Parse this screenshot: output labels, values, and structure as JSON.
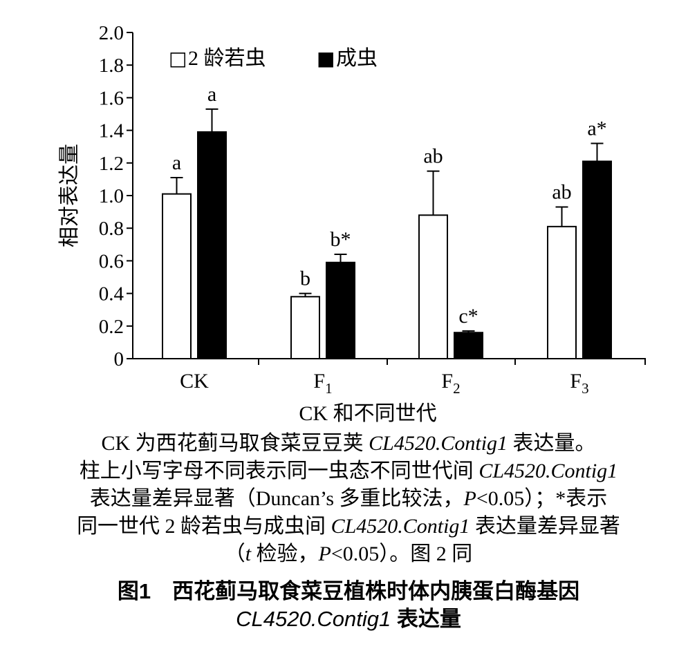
{
  "chart_data": {
    "type": "bar",
    "categories": [
      "CK",
      "F1",
      "F2",
      "F3"
    ],
    "category_labels": [
      {
        "main": "CK",
        "sub": ""
      },
      {
        "main": "F",
        "sub": "1"
      },
      {
        "main": "F",
        "sub": "2"
      },
      {
        "main": "F",
        "sub": "3"
      }
    ],
    "series": [
      {
        "name": "2 龄若虫",
        "fill": "#ffffff",
        "values": [
          1.01,
          0.38,
          0.88,
          0.81
        ],
        "errors": [
          0.1,
          0.02,
          0.27,
          0.12
        ],
        "labels": [
          "a",
          "b",
          "ab",
          "ab"
        ]
      },
      {
        "name": "成虫",
        "fill": "#000000",
        "values": [
          1.39,
          0.59,
          0.16,
          1.21
        ],
        "errors": [
          0.14,
          0.05,
          0.01,
          0.11
        ],
        "labels": [
          "a",
          "b*",
          "c*",
          "a*"
        ]
      }
    ],
    "legend_markers": [
      "□",
      "■"
    ],
    "xlabel": "CK 和不同世代",
    "ylabel": "相对表达量",
    "ylim": [
      0,
      2.0
    ],
    "yticks": [
      "0",
      "0.2",
      "0.4",
      "0.6",
      "0.8",
      "1.0",
      "1.2",
      "1.4",
      "1.6",
      "1.8",
      "2.0"
    ],
    "grid": false,
    "legend_position": "top-left"
  },
  "caption": {
    "line1_a": "CK 为西花蓟马取食菜豆豆荚 ",
    "line1_italic": "CL4520.Contig1",
    "line1_b": " 表达量。",
    "line2_a": "柱上小写字母不同表示同一虫态不同世代间 ",
    "line2_italic": "CL4520.Contig1",
    "line3_a": "表达量差异显著（Duncan’s 多重比较法，",
    "line3_p": "P",
    "line3_b": "<0.05）；*表示",
    "line4_a": "同一世代 2 龄若虫与成虫间 ",
    "line4_italic": "CL4520.Contig1",
    "line4_b": " 表达量差异显著",
    "line5_a": "（",
    "line5_t": "t",
    "line5_b": " 检验，",
    "line5_p": "P",
    "line5_c": "<0.05）。图 2 同"
  },
  "figure_title": {
    "line1": "图1　西花蓟马取食菜豆植株时体内胰蛋白酶基因",
    "line2_italic": "CL4520.Contig1",
    "line2_b": " 表达量"
  }
}
